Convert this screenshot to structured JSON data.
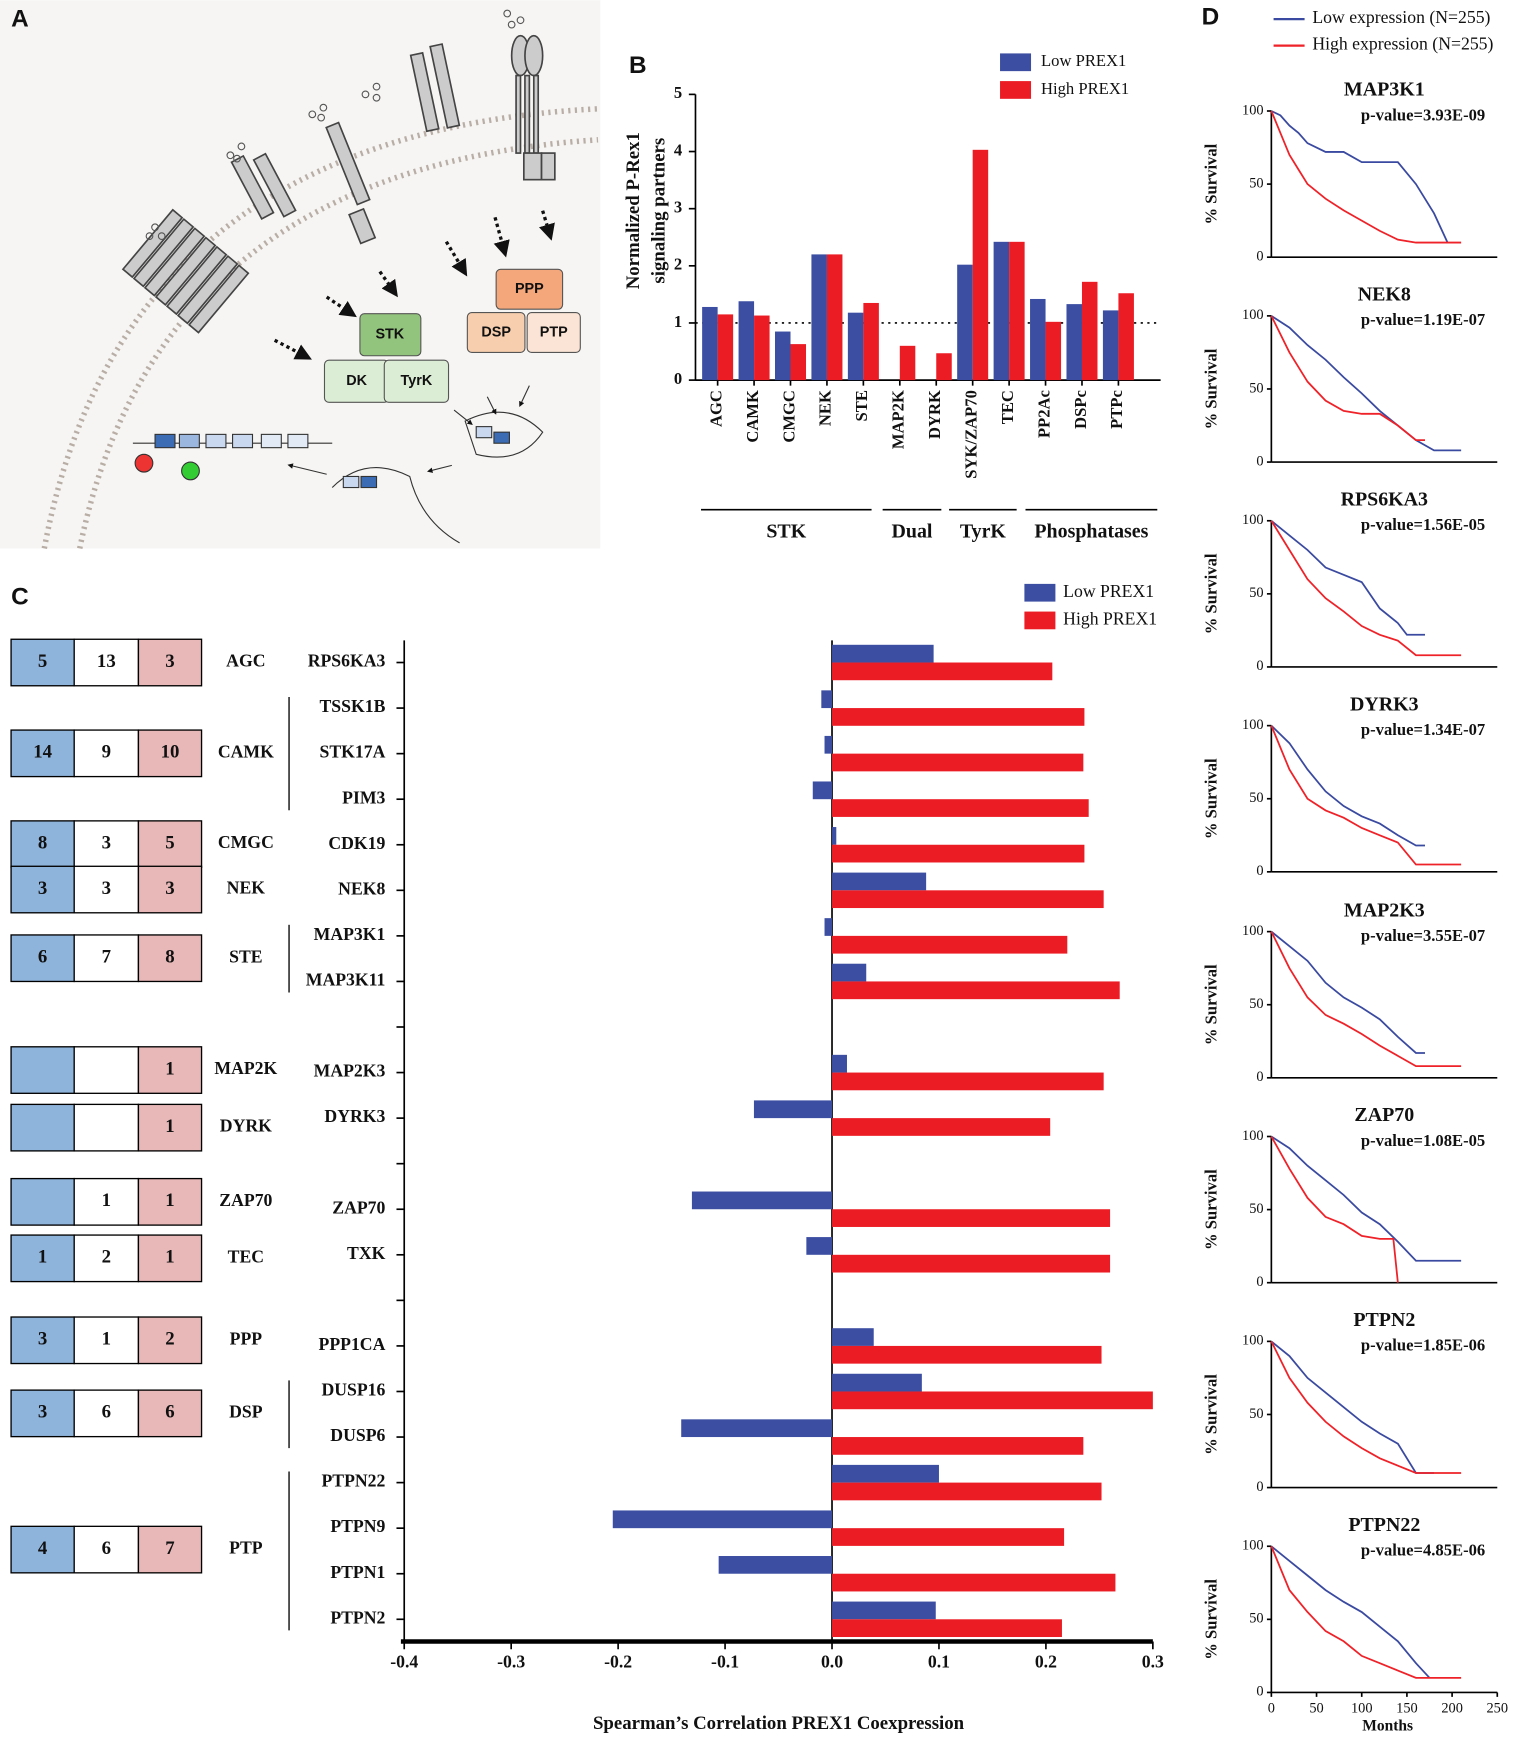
{
  "diagram": {
    "panel": "A",
    "labels": [
      "STK",
      "DK",
      "TyrK",
      "PPP",
      "DSP",
      "PTP"
    ]
  },
  "chart_data": [
    {
      "panel": "B",
      "type": "bar",
      "ylabel": [
        "Normalized P-Rex1",
        "signaling partners"
      ],
      "categories": [
        "AGC",
        "CAMK",
        "CMGC",
        "NEK",
        "STE",
        "MAP2K",
        "DYRK",
        "SYK/ZAP70",
        "TEC",
        "PP2Ac",
        "DSPc",
        "PTPc"
      ],
      "series": [
        {
          "name": "Low PREX1",
          "color": "#3c4ea2",
          "values": [
            1.28,
            1.38,
            0.85,
            2.2,
            1.18,
            null,
            null,
            2.02,
            2.42,
            1.42,
            1.33,
            1.22
          ]
        },
        {
          "name": "High PREX1",
          "color": "#ec1c24",
          "values": [
            1.15,
            1.13,
            0.63,
            2.2,
            1.35,
            0.6,
            0.47,
            4.03,
            2.42,
            1.02,
            1.72,
            1.52
          ]
        }
      ],
      "ylim": [
        0,
        5
      ],
      "yticks": [
        0,
        1,
        2,
        3,
        4,
        5
      ],
      "reference_line": 1,
      "groups": [
        "STK",
        "Dual",
        "TyrK",
        "Phosphatases"
      ]
    },
    {
      "panel": "C",
      "type": "barh",
      "xlabel": "Spearman’s Correlation PREX1 Coexpression",
      "categories": [
        "RPS6KA3",
        "TSSK1B",
        "STK17A",
        "PIM3",
        "CDK19",
        "NEK8",
        "MAP3K1",
        "MAP3K11",
        null,
        "MAP2K3",
        "DYRK3",
        null,
        "ZAP70",
        "TXK",
        null,
        "PPP1CA",
        "DUSP16",
        "DUSP6",
        "PTPN22",
        "PTPN9",
        "PTPN1",
        "PTPN2"
      ],
      "series": [
        {
          "name": "Low PREX1",
          "color": "#3c4ea2",
          "values": [
            0.095,
            -0.01,
            -0.007,
            -0.018,
            0.004,
            0.088,
            -0.007,
            0.032,
            null,
            0.014,
            -0.073,
            null,
            -0.131,
            -0.024,
            null,
            0.039,
            0.084,
            -0.141,
            0.1,
            -0.205,
            -0.106,
            0.097
          ]
        },
        {
          "name": "High PREX1",
          "color": "#ec1c24",
          "values": [
            0.206,
            0.236,
            0.235,
            0.24,
            0.236,
            0.254,
            0.22,
            0.269,
            null,
            0.254,
            0.204,
            null,
            0.26,
            0.26,
            null,
            0.252,
            0.3,
            0.235,
            0.252,
            0.217,
            0.265,
            0.215
          ]
        }
      ],
      "xlim": [
        -0.4,
        0.3
      ],
      "xticks": [
        -0.4,
        -0.3,
        -0.2,
        -0.1,
        {
          "value": 0,
          "label": "0.0"
        },
        0.1,
        0.2,
        0.3
      ],
      "families": [
        {
          "name": "AGC",
          "counts": [
            5,
            13,
            3
          ]
        },
        {
          "name": "CAMK",
          "counts": [
            14,
            9,
            10
          ]
        },
        {
          "name": "CMGC",
          "counts": [
            8,
            3,
            5
          ]
        },
        {
          "name": "NEK",
          "counts": [
            3,
            3,
            3
          ]
        },
        {
          "name": "STE",
          "counts": [
            6,
            7,
            8
          ]
        },
        {
          "name": "MAP2K",
          "counts": [
            null,
            null,
            1
          ]
        },
        {
          "name": "DYRK",
          "counts": [
            null,
            null,
            1
          ]
        },
        {
          "name": "ZAP70",
          "counts": [
            null,
            1,
            1
          ]
        },
        {
          "name": "TEC",
          "counts": [
            1,
            2,
            1
          ]
        },
        {
          "name": "PPP",
          "counts": [
            3,
            1,
            2
          ]
        },
        {
          "name": "DSP",
          "counts": [
            3,
            6,
            6
          ]
        },
        {
          "name": "PTP",
          "counts": [
            4,
            6,
            7
          ]
        }
      ]
    },
    {
      "panel": "D",
      "type": "line",
      "title": "MAP3K1",
      "annotation": "p-value=3.93E-09",
      "ylabel": "% Survival",
      "xlim": [
        0,
        250
      ],
      "ylim": [
        0,
        100
      ],
      "yticks": [
        0,
        50,
        100
      ],
      "series": [
        {
          "name": "Low expression (N=255)",
          "color": "#3a4aa0",
          "x": [
            0,
            10,
            20,
            30,
            40,
            60,
            80,
            100,
            120,
            140,
            160,
            180,
            195
          ],
          "values": [
            100,
            97,
            90,
            85,
            78,
            72,
            72,
            65,
            65,
            65,
            50,
            30,
            10
          ]
        },
        {
          "name": "High expression (N=255)",
          "color": "#ee2228",
          "x": [
            0,
            10,
            20,
            30,
            40,
            60,
            80,
            100,
            120,
            140,
            160,
            210
          ],
          "values": [
            100,
            85,
            70,
            60,
            50,
            40,
            32,
            25,
            18,
            12,
            10,
            10
          ]
        }
      ]
    },
    {
      "type": "line",
      "title": "NEK8",
      "annotation": "p-value=1.19E-07",
      "ylabel": "% Survival",
      "xlim": [
        0,
        250
      ],
      "ylim": [
        0,
        100
      ],
      "yticks": [
        0,
        50,
        100
      ],
      "series": [
        {
          "color": "#3a4aa0",
          "x": [
            0,
            20,
            40,
            60,
            80,
            100,
            120,
            140,
            160,
            180,
            210
          ],
          "values": [
            100,
            92,
            80,
            70,
            58,
            47,
            35,
            25,
            15,
            8,
            8
          ]
        },
        {
          "color": "#ee2228",
          "x": [
            0,
            20,
            40,
            60,
            80,
            100,
            120,
            140,
            160,
            170
          ],
          "values": [
            100,
            75,
            55,
            42,
            35,
            33,
            33,
            25,
            15,
            15
          ]
        }
      ]
    },
    {
      "type": "line",
      "title": "RPS6KA3",
      "annotation": "p-value=1.56E-05",
      "ylabel": "% Survival",
      "xlim": [
        0,
        250
      ],
      "ylim": [
        0,
        100
      ],
      "yticks": [
        0,
        50,
        100
      ],
      "series": [
        {
          "color": "#3a4aa0",
          "x": [
            0,
            20,
            40,
            60,
            80,
            100,
            120,
            140,
            150,
            170
          ],
          "values": [
            100,
            90,
            80,
            68,
            63,
            58,
            40,
            30,
            22,
            22
          ]
        },
        {
          "color": "#ee2228",
          "x": [
            0,
            20,
            40,
            60,
            80,
            100,
            120,
            140,
            160,
            210
          ],
          "values": [
            100,
            80,
            60,
            47,
            38,
            28,
            22,
            18,
            8,
            8
          ]
        }
      ]
    },
    {
      "type": "line",
      "title": "DYRK3",
      "annotation": "p-value=1.34E-07",
      "ylabel": "% Survival",
      "xlim": [
        0,
        250
      ],
      "ylim": [
        0,
        100
      ],
      "yticks": [
        0,
        50,
        100
      ],
      "series": [
        {
          "color": "#3a4aa0",
          "x": [
            0,
            20,
            40,
            60,
            80,
            100,
            120,
            140,
            160,
            170
          ],
          "values": [
            100,
            88,
            70,
            55,
            45,
            38,
            33,
            25,
            18,
            18
          ]
        },
        {
          "color": "#ee2228",
          "x": [
            0,
            20,
            40,
            60,
            80,
            100,
            120,
            140,
            160,
            210
          ],
          "values": [
            100,
            70,
            50,
            42,
            37,
            30,
            25,
            20,
            5,
            5
          ]
        }
      ]
    },
    {
      "type": "line",
      "title": "MAP2K3",
      "annotation": "p-value=3.55E-07",
      "ylabel": "% Survival",
      "xlim": [
        0,
        250
      ],
      "ylim": [
        0,
        100
      ],
      "yticks": [
        0,
        50,
        100
      ],
      "series": [
        {
          "color": "#3a4aa0",
          "x": [
            0,
            20,
            40,
            60,
            80,
            100,
            120,
            140,
            160,
            170
          ],
          "values": [
            100,
            90,
            80,
            65,
            55,
            48,
            40,
            28,
            17,
            17
          ]
        },
        {
          "color": "#ee2228",
          "x": [
            0,
            20,
            40,
            60,
            80,
            100,
            120,
            140,
            160,
            210
          ],
          "values": [
            100,
            75,
            55,
            43,
            37,
            30,
            22,
            15,
            8,
            8
          ]
        }
      ]
    },
    {
      "type": "line",
      "title": "ZAP70",
      "annotation": "p-value=1.08E-05",
      "ylabel": "% Survival",
      "xlim": [
        0,
        250
      ],
      "ylim": [
        0,
        100
      ],
      "yticks": [
        0,
        50,
        100
      ],
      "series": [
        {
          "color": "#3a4aa0",
          "x": [
            0,
            20,
            40,
            60,
            80,
            100,
            120,
            140,
            160,
            210
          ],
          "values": [
            100,
            92,
            80,
            70,
            60,
            48,
            40,
            28,
            15,
            15
          ]
        },
        {
          "color": "#ee2228",
          "x": [
            0,
            20,
            40,
            60,
            80,
            100,
            120,
            135,
            140
          ],
          "values": [
            100,
            78,
            58,
            45,
            40,
            32,
            30,
            30,
            0
          ]
        }
      ]
    },
    {
      "type": "line",
      "title": "PTPN2",
      "annotation": "p-value=1.85E-06",
      "ylabel": "% Survival",
      "xlim": [
        0,
        250
      ],
      "ylim": [
        0,
        100
      ],
      "yticks": [
        0,
        50,
        100
      ],
      "series": [
        {
          "color": "#3a4aa0",
          "x": [
            0,
            20,
            40,
            60,
            80,
            100,
            120,
            140,
            160,
            180
          ],
          "values": [
            100,
            90,
            75,
            65,
            55,
            45,
            37,
            30,
            10,
            10
          ]
        },
        {
          "color": "#ee2228",
          "x": [
            0,
            20,
            40,
            60,
            80,
            100,
            120,
            140,
            160,
            210
          ],
          "values": [
            100,
            75,
            58,
            45,
            35,
            27,
            20,
            15,
            10,
            10
          ]
        }
      ]
    },
    {
      "type": "line",
      "title": "PTPN22",
      "annotation": "p-value=4.85E-06",
      "ylabel": "% Survival",
      "xlabel": "Months",
      "xlim": [
        0,
        250
      ],
      "ylim": [
        0,
        100
      ],
      "yticks": [
        0,
        50,
        100
      ],
      "xticks": [
        0,
        50,
        100,
        150,
        200,
        250
      ],
      "series": [
        {
          "color": "#3a4aa0",
          "x": [
            0,
            20,
            40,
            60,
            80,
            100,
            120,
            140,
            160,
            175
          ],
          "values": [
            100,
            90,
            80,
            70,
            62,
            55,
            45,
            35,
            20,
            10
          ]
        },
        {
          "color": "#ee2228",
          "x": [
            0,
            20,
            40,
            60,
            80,
            100,
            120,
            140,
            160,
            210
          ],
          "values": [
            100,
            70,
            55,
            42,
            35,
            25,
            20,
            15,
            10,
            10
          ]
        }
      ]
    }
  ]
}
